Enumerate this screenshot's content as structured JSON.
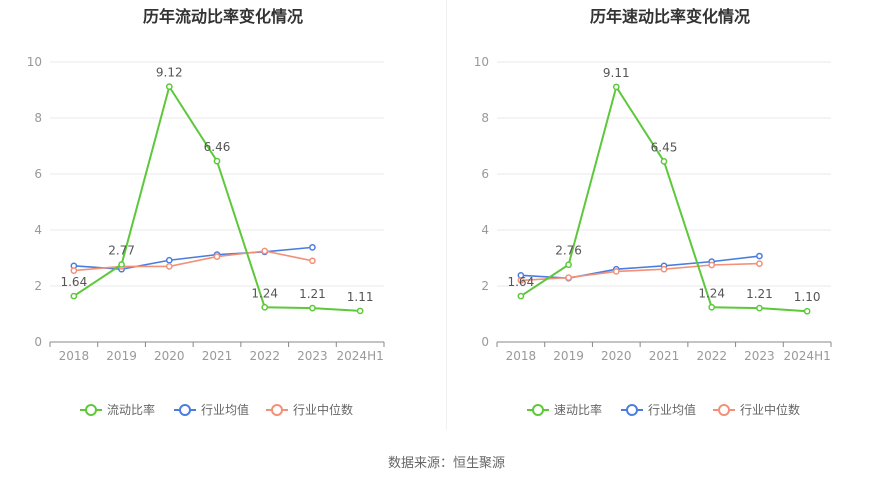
{
  "source": "数据来源：恒生聚源",
  "chart_data": [
    {
      "type": "line",
      "title": "历年流动比率变化情况",
      "categories": [
        "2018",
        "2019",
        "2020",
        "2021",
        "2022",
        "2023",
        "2024H1"
      ],
      "ylim": [
        0,
        10
      ],
      "yticks": [
        0,
        2,
        4,
        6,
        8,
        10
      ],
      "grid": true,
      "legend_position": "bottom",
      "series": [
        {
          "name": "流动比率",
          "color": "#5cc83a",
          "values": [
            1.64,
            2.77,
            9.12,
            6.46,
            1.24,
            1.21,
            1.11
          ],
          "labels": [
            "1.64",
            "2.77",
            "9.12",
            "6.46",
            "1.24",
            "1.21",
            "1.11"
          ]
        },
        {
          "name": "行业均值",
          "color": "#4a7de0",
          "values": [
            2.72,
            2.6,
            2.92,
            3.12,
            3.22,
            3.38,
            null
          ]
        },
        {
          "name": "行业中位数",
          "color": "#f39078",
          "values": [
            2.55,
            2.7,
            2.7,
            3.05,
            3.25,
            2.9,
            null
          ]
        }
      ]
    },
    {
      "type": "line",
      "title": "历年速动比率变化情况",
      "categories": [
        "2018",
        "2019",
        "2020",
        "2021",
        "2022",
        "2023",
        "2024H1"
      ],
      "ylim": [
        0,
        10
      ],
      "yticks": [
        0,
        2,
        4,
        6,
        8,
        10
      ],
      "grid": true,
      "legend_position": "bottom",
      "series": [
        {
          "name": "速动比率",
          "color": "#5cc83a",
          "values": [
            1.64,
            2.76,
            9.11,
            6.45,
            1.24,
            1.21,
            1.1
          ],
          "labels": [
            "1.64",
            "2.76",
            "9.11",
            "6.45",
            "1.24",
            "1.21",
            "1.10"
          ]
        },
        {
          "name": "行业均值",
          "color": "#4a7de0",
          "values": [
            2.38,
            2.28,
            2.6,
            2.72,
            2.87,
            3.07,
            null
          ]
        },
        {
          "name": "行业中位数",
          "color": "#f39078",
          "values": [
            2.2,
            2.3,
            2.52,
            2.6,
            2.75,
            2.8,
            null
          ]
        }
      ]
    }
  ]
}
